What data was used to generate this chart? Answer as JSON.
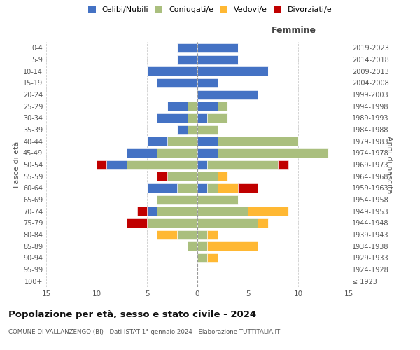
{
  "age_groups": [
    "100+",
    "95-99",
    "90-94",
    "85-89",
    "80-84",
    "75-79",
    "70-74",
    "65-69",
    "60-64",
    "55-59",
    "50-54",
    "45-49",
    "40-44",
    "35-39",
    "30-34",
    "25-29",
    "20-24",
    "15-19",
    "10-14",
    "5-9",
    "0-4"
  ],
  "birth_years": [
    "≤ 1923",
    "1924-1928",
    "1929-1933",
    "1934-1938",
    "1939-1943",
    "1944-1948",
    "1949-1953",
    "1954-1958",
    "1959-1963",
    "1964-1968",
    "1969-1973",
    "1974-1978",
    "1979-1983",
    "1984-1988",
    "1989-1993",
    "1994-1998",
    "1999-2003",
    "2004-2008",
    "2009-2013",
    "2014-2018",
    "2019-2023"
  ],
  "male": {
    "celibi": [
      0,
      0,
      0,
      0,
      0,
      0,
      1,
      0,
      3,
      0,
      2,
      3,
      2,
      1,
      3,
      2,
      0,
      4,
      5,
      2,
      2
    ],
    "coniugati": [
      0,
      0,
      0,
      1,
      2,
      5,
      4,
      4,
      2,
      3,
      7,
      4,
      3,
      1,
      1,
      1,
      0,
      0,
      0,
      0,
      0
    ],
    "vedovi": [
      0,
      0,
      0,
      0,
      2,
      0,
      0,
      0,
      0,
      0,
      0,
      0,
      0,
      0,
      0,
      0,
      0,
      0,
      0,
      0,
      0
    ],
    "divorziati": [
      0,
      0,
      0,
      0,
      0,
      2,
      1,
      0,
      0,
      1,
      1,
      0,
      0,
      0,
      0,
      0,
      0,
      0,
      0,
      0,
      0
    ]
  },
  "female": {
    "nubili": [
      0,
      0,
      0,
      0,
      0,
      0,
      0,
      0,
      1,
      0,
      1,
      2,
      2,
      0,
      1,
      2,
      6,
      2,
      7,
      4,
      4
    ],
    "coniugate": [
      0,
      0,
      1,
      1,
      1,
      6,
      5,
      4,
      1,
      2,
      7,
      11,
      8,
      2,
      2,
      1,
      0,
      0,
      0,
      0,
      0
    ],
    "vedove": [
      0,
      0,
      1,
      5,
      1,
      1,
      4,
      0,
      2,
      1,
      0,
      0,
      0,
      0,
      0,
      0,
      0,
      0,
      0,
      0,
      0
    ],
    "divorziate": [
      0,
      0,
      0,
      0,
      0,
      0,
      0,
      0,
      2,
      0,
      1,
      0,
      0,
      0,
      0,
      0,
      0,
      0,
      0,
      0,
      0
    ]
  },
  "colors": {
    "celibi": "#4472C4",
    "coniugati": "#AABF7E",
    "vedovi": "#FFB833",
    "divorziati": "#C00000"
  },
  "legend_labels": [
    "Celibi/Nubili",
    "Coniugati/e",
    "Vedovi/e",
    "Divorziati/e"
  ],
  "title": "Popolazione per età, sesso e stato civile - 2024",
  "subtitle": "COMUNE DI VALLANZENGO (BI) - Dati ISTAT 1° gennaio 2024 - Elaborazione TUTTITALIA.IT",
  "xlabel_right": "Femmine",
  "ylabel_left": "Fasce di età",
  "ylabel_right": "Anni di nascita",
  "xlim": 15,
  "bg_color": "#FFFFFF",
  "grid_color": "#CCCCCC"
}
